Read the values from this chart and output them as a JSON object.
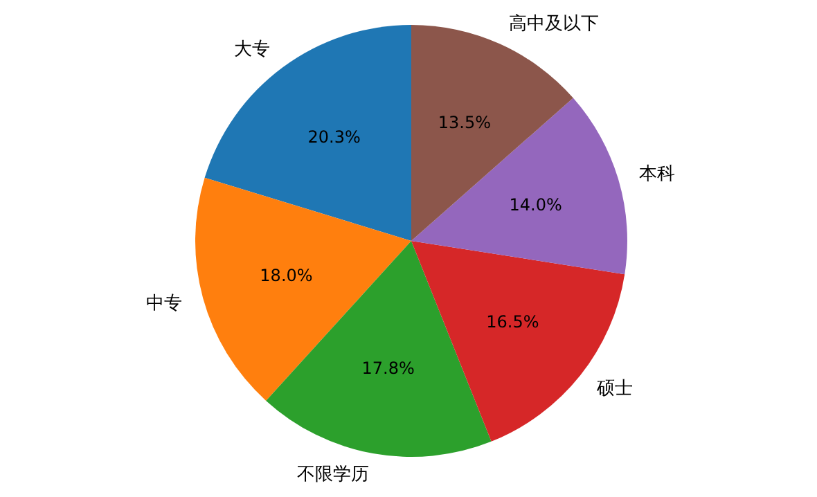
{
  "chart_data": {
    "type": "pie",
    "categories": [
      "大专",
      "中专",
      "不限学历",
      "硕士",
      "本科",
      "高中及以下"
    ],
    "values": [
      20.3,
      18.0,
      17.8,
      16.5,
      14.0,
      13.5
    ],
    "colors": [
      "#1f77b4",
      "#ff7f0e",
      "#2ca02c",
      "#d62728",
      "#9467bd",
      "#8c564b"
    ],
    "value_labels": [
      "20.3%",
      "18.0%",
      "17.8%",
      "16.5%",
      "14.0%",
      "13.5%"
    ]
  }
}
